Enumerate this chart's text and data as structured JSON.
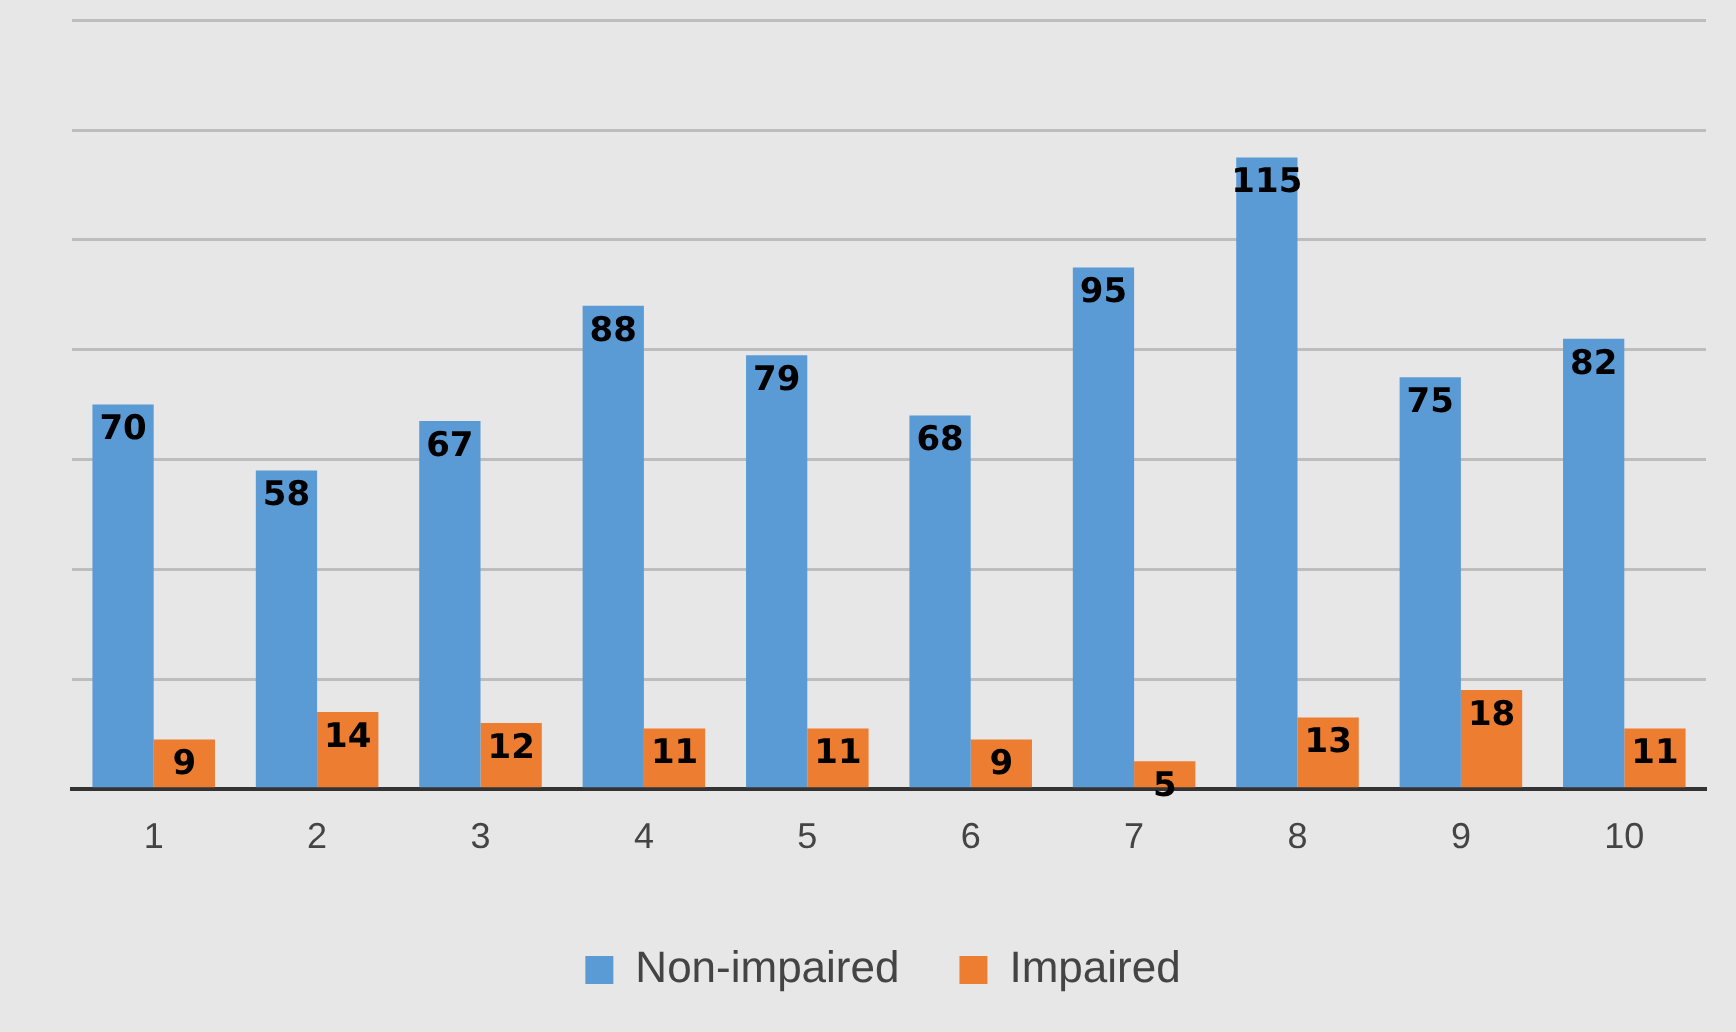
{
  "chart_data": {
    "type": "bar",
    "categories": [
      "1",
      "2",
      "3",
      "4",
      "5",
      "6",
      "7",
      "8",
      "9",
      "10"
    ],
    "series": [
      {
        "name": "Non-impaired",
        "color": "#5b9bd5",
        "values": [
          70,
          58,
          67,
          88,
          79,
          68,
          95,
          115,
          75,
          82
        ]
      },
      {
        "name": "Impaired",
        "color": "#ed7d31",
        "values": [
          9,
          14,
          12,
          11,
          11,
          9,
          5,
          13,
          18,
          11
        ]
      }
    ],
    "ylim": [
      0,
      140
    ],
    "yticks": [
      {
        "value": 0,
        "label": null
      },
      {
        "value": 20,
        "label": null
      },
      {
        "value": 40,
        "label": null
      },
      {
        "value": 60,
        "label": null
      },
      {
        "value": 80,
        "label": null
      },
      {
        "value": 100,
        "label": null
      },
      {
        "value": 120,
        "label": null
      },
      {
        "value": 140,
        "label": null
      }
    ],
    "grid": "y",
    "legend": "bottom",
    "data_labels": true
  }
}
